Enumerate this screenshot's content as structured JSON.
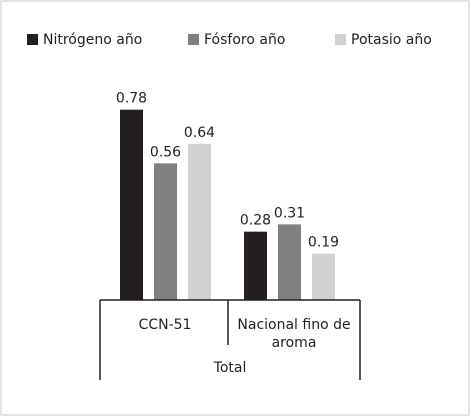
{
  "chart_data": {
    "type": "bar",
    "categories": [
      "CCN-51",
      "Nacional fino de aroma"
    ],
    "group_label": "Total",
    "series": [
      {
        "name": "Nitrógeno año",
        "color": "#231f20",
        "values": [
          0.78,
          0.28
        ]
      },
      {
        "name": "Fósforo año",
        "color": "#808080",
        "values": [
          0.56,
          0.31
        ]
      },
      {
        "name": "Potasio año",
        "color": "#d1d1d2",
        "values": [
          0.64,
          0.19
        ]
      }
    ],
    "legend": "top"
  }
}
